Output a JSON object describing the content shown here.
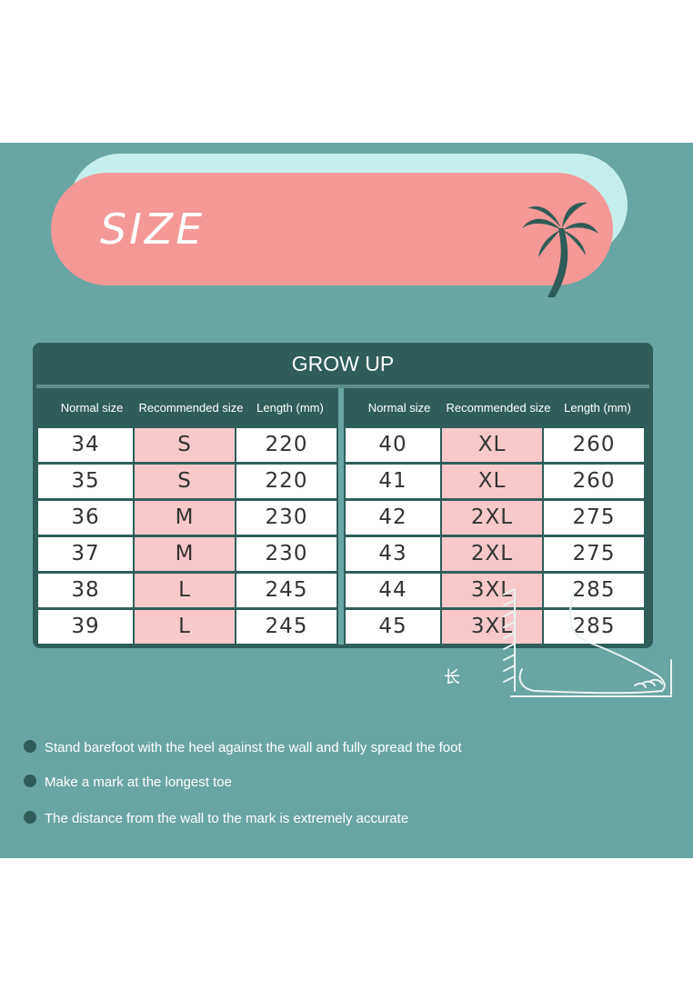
{
  "banner": {
    "title": "SIZE"
  },
  "table": {
    "title": "GROW UP",
    "headers": [
      "Normal size",
      "Recommended size",
      "Length (mm)"
    ],
    "left_rows": [
      [
        "34",
        "S",
        "220"
      ],
      [
        "35",
        "S",
        "220"
      ],
      [
        "36",
        "M",
        "230"
      ],
      [
        "37",
        "M",
        "230"
      ],
      [
        "38",
        "L",
        "245"
      ],
      [
        "39",
        "L",
        "245"
      ]
    ],
    "right_rows": [
      [
        "40",
        "XL",
        "260"
      ],
      [
        "41",
        "XL",
        "260"
      ],
      [
        "42",
        "2XL",
        "275"
      ],
      [
        "43",
        "2XL",
        "275"
      ],
      [
        "44",
        "3XL",
        "285"
      ],
      [
        "45",
        "3XL",
        "285"
      ]
    ]
  },
  "instructions": [
    "Stand barefoot with the heel against the wall and fully spread the foot",
    "Make a mark at the longest toe",
    "The distance from the wall to the mark is extremely accurate"
  ],
  "length_mark": "长",
  "colors": {
    "background": "#68a6a3",
    "banner_pink": "#f49898",
    "banner_mint": "#c4efec",
    "table_dark": "#2f5e5a",
    "recommended_cell": "#f8c8cb"
  },
  "icons": [
    "palm-tree-icon",
    "bullet-dot-icon",
    "foot-measure-illustration"
  ]
}
